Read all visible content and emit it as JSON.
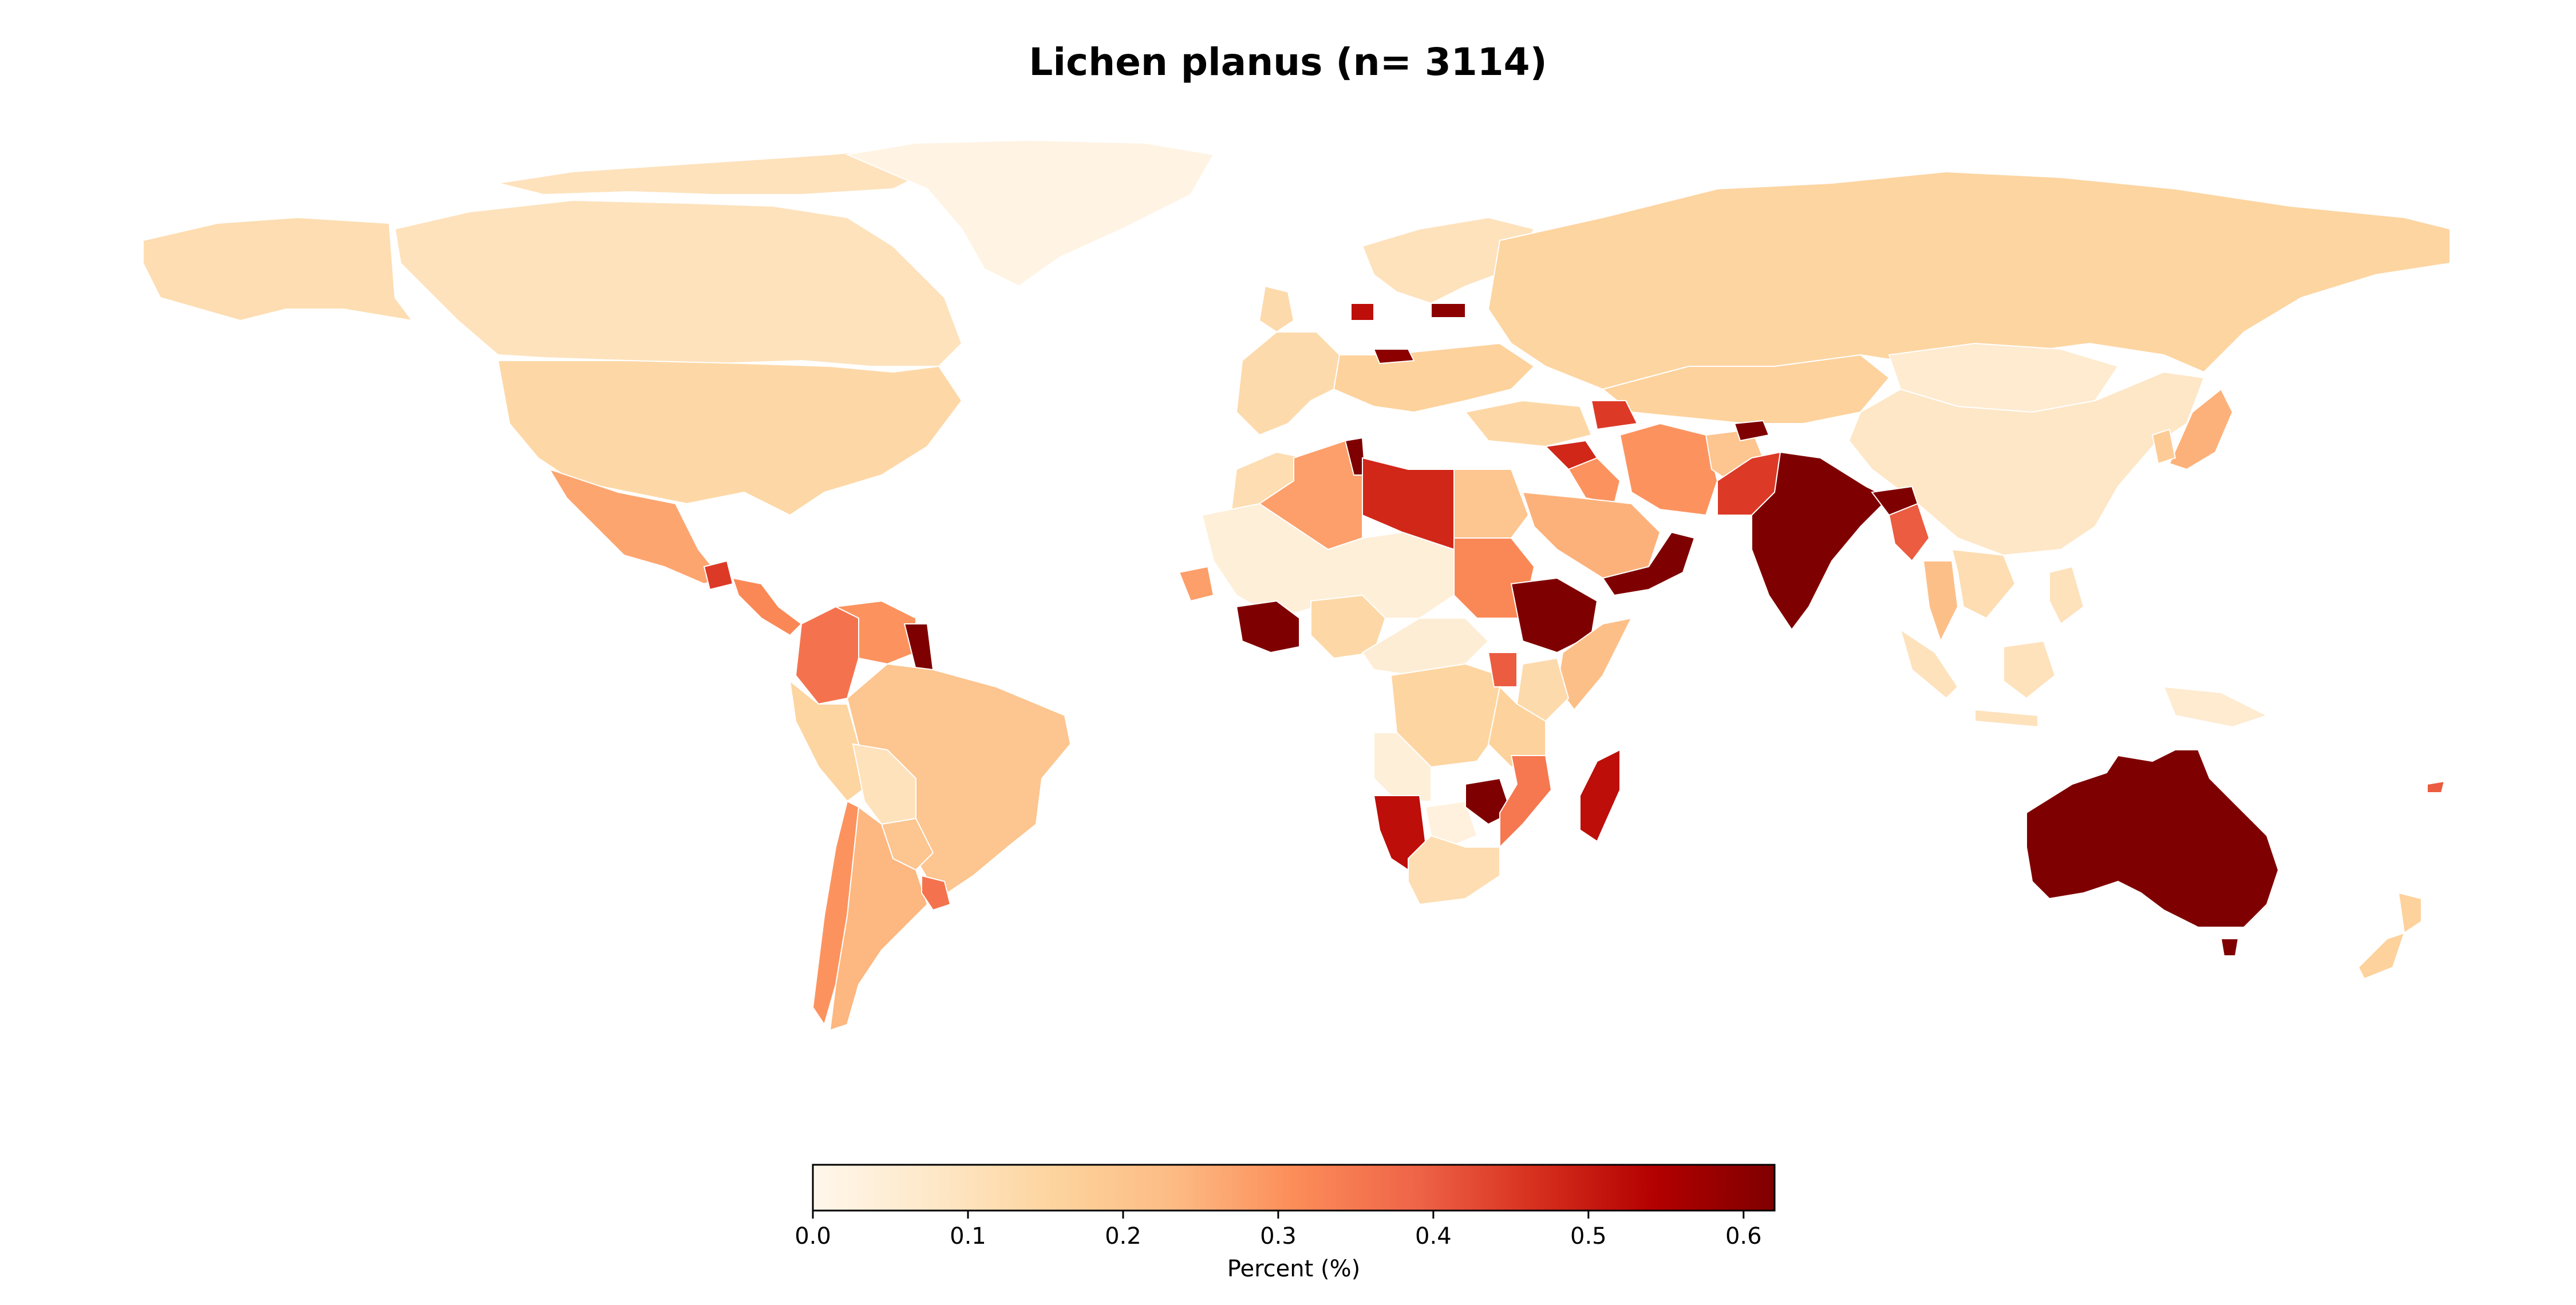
{
  "title": "Lichen planus (n= 3114)",
  "colorbar": {
    "label": "Percent (%)",
    "min": 0.0,
    "max": 0.62,
    "ticks": [
      "0.0",
      "0.1",
      "0.2",
      "0.3",
      "0.4",
      "0.5",
      "0.6"
    ],
    "tick_values": [
      0.0,
      0.1,
      0.2,
      0.3,
      0.4,
      0.5,
      0.6
    ],
    "colormap": [
      "#fff5eb",
      "#fee6ce",
      "#fdd0a2",
      "#fdae6b",
      "#fd8d3c",
      "#f16913",
      "#d94801",
      "#a63603",
      "#7f2704"
    ],
    "display_colors": [
      "#fff7ec",
      "#fee8c8",
      "#fdd49e",
      "#fdbb84",
      "#fc8d59",
      "#ef6548",
      "#d7301f",
      "#b30000",
      "#7f0000"
    ]
  },
  "regions": [
    {
      "name": "Canada",
      "value": 0.1
    },
    {
      "name": "Greenland",
      "value": 0.02
    },
    {
      "name": "Alaska",
      "value": 0.12
    },
    {
      "name": "United States",
      "value": 0.14
    },
    {
      "name": "Mexico",
      "value": 0.27
    },
    {
      "name": "Guatemala",
      "value": 0.45
    },
    {
      "name": "Central America",
      "value": 0.32
    },
    {
      "name": "Colombia",
      "value": 0.36
    },
    {
      "name": "Venezuela",
      "value": 0.3
    },
    {
      "name": "Guyana",
      "value": 0.62
    },
    {
      "name": "Ecuador Peru",
      "value": 0.15
    },
    {
      "name": "Brazil",
      "value": 0.2
    },
    {
      "name": "Bolivia",
      "value": 0.1
    },
    {
      "name": "Paraguay",
      "value": 0.2
    },
    {
      "name": "Chile",
      "value": 0.3
    },
    {
      "name": "Argentina",
      "value": 0.24
    },
    {
      "name": "Uruguay",
      "value": 0.36
    },
    {
      "name": "Western Europe",
      "value": 0.13
    },
    {
      "name": "Eastern Europe",
      "value": 0.16
    },
    {
      "name": "Poland",
      "value": 0.52
    },
    {
      "name": "Czechia",
      "value": 0.6
    },
    {
      "name": "Scandinavia",
      "value": 0.1
    },
    {
      "name": "Latvia",
      "value": 0.6
    },
    {
      "name": "Russia",
      "value": 0.15
    },
    {
      "name": "Kazakhstan",
      "value": 0.16
    },
    {
      "name": "Mongolia",
      "value": 0.06
    },
    {
      "name": "China",
      "value": 0.08
    },
    {
      "name": "Japan",
      "value": 0.25
    },
    {
      "name": "Korea",
      "value": 0.18
    },
    {
      "name": "Turkey",
      "value": 0.14
    },
    {
      "name": "Caucasus",
      "value": 0.45
    },
    {
      "name": "Syria",
      "value": 0.48
    },
    {
      "name": "Iraq",
      "value": 0.3
    },
    {
      "name": "Iran",
      "value": 0.3
    },
    {
      "name": "Afghanistan",
      "value": 0.2
    },
    {
      "name": "Pakistan",
      "value": 0.45
    },
    {
      "name": "Tajikistan",
      "value": 0.62
    },
    {
      "name": "India",
      "value": 0.62
    },
    {
      "name": "Bangladesh Myanmar",
      "value": 0.4
    },
    {
      "name": "Thailand",
      "value": 0.22
    },
    {
      "name": "Indochina",
      "value": 0.12
    },
    {
      "name": "Saudi Arabia",
      "value": 0.25
    },
    {
      "name": "Oman Yemen",
      "value": 0.62
    },
    {
      "name": "Morocco",
      "value": 0.12
    },
    {
      "name": "Algeria",
      "value": 0.28
    },
    {
      "name": "Tunisia",
      "value": 0.62
    },
    {
      "name": "Libya",
      "value": 0.48
    },
    {
      "name": "Egypt",
      "value": 0.2
    },
    {
      "name": "Sudan",
      "value": 0.32
    },
    {
      "name": "Sahel",
      "value": 0.04
    },
    {
      "name": "Senegal",
      "value": 0.28
    },
    {
      "name": "Cote d'Ivoire Ghana",
      "value": 0.62
    },
    {
      "name": "Nigeria",
      "value": 0.14
    },
    {
      "name": "Central Africa",
      "value": 0.05
    },
    {
      "name": "DR Congo",
      "value": 0.15
    },
    {
      "name": "Ethiopia",
      "value": 0.62
    },
    {
      "name": "Somalia",
      "value": 0.22
    },
    {
      "name": "Kenya",
      "value": 0.13
    },
    {
      "name": "Uganda",
      "value": 0.4
    },
    {
      "name": "Tanzania",
      "value": 0.16
    },
    {
      "name": "Angola",
      "value": 0.04
    },
    {
      "name": "Namibia",
      "value": 0.52
    },
    {
      "name": "Botswana",
      "value": 0.03
    },
    {
      "name": "Zimbabwe",
      "value": 0.62
    },
    {
      "name": "Mozambique",
      "value": 0.35
    },
    {
      "name": "South Africa",
      "value": 0.12
    },
    {
      "name": "Madagascar",
      "value": 0.52
    },
    {
      "name": "Indonesia",
      "value": 0.1
    },
    {
      "name": "Philippines",
      "value": 0.1
    },
    {
      "name": "Papua New Guinea",
      "value": 0.06
    },
    {
      "name": "Australia",
      "value": 0.62
    },
    {
      "name": "Tasmania",
      "value": 0.62
    },
    {
      "name": "New Zealand",
      "value": 0.16
    },
    {
      "name": "Fiji",
      "value": 0.4
    }
  ]
}
